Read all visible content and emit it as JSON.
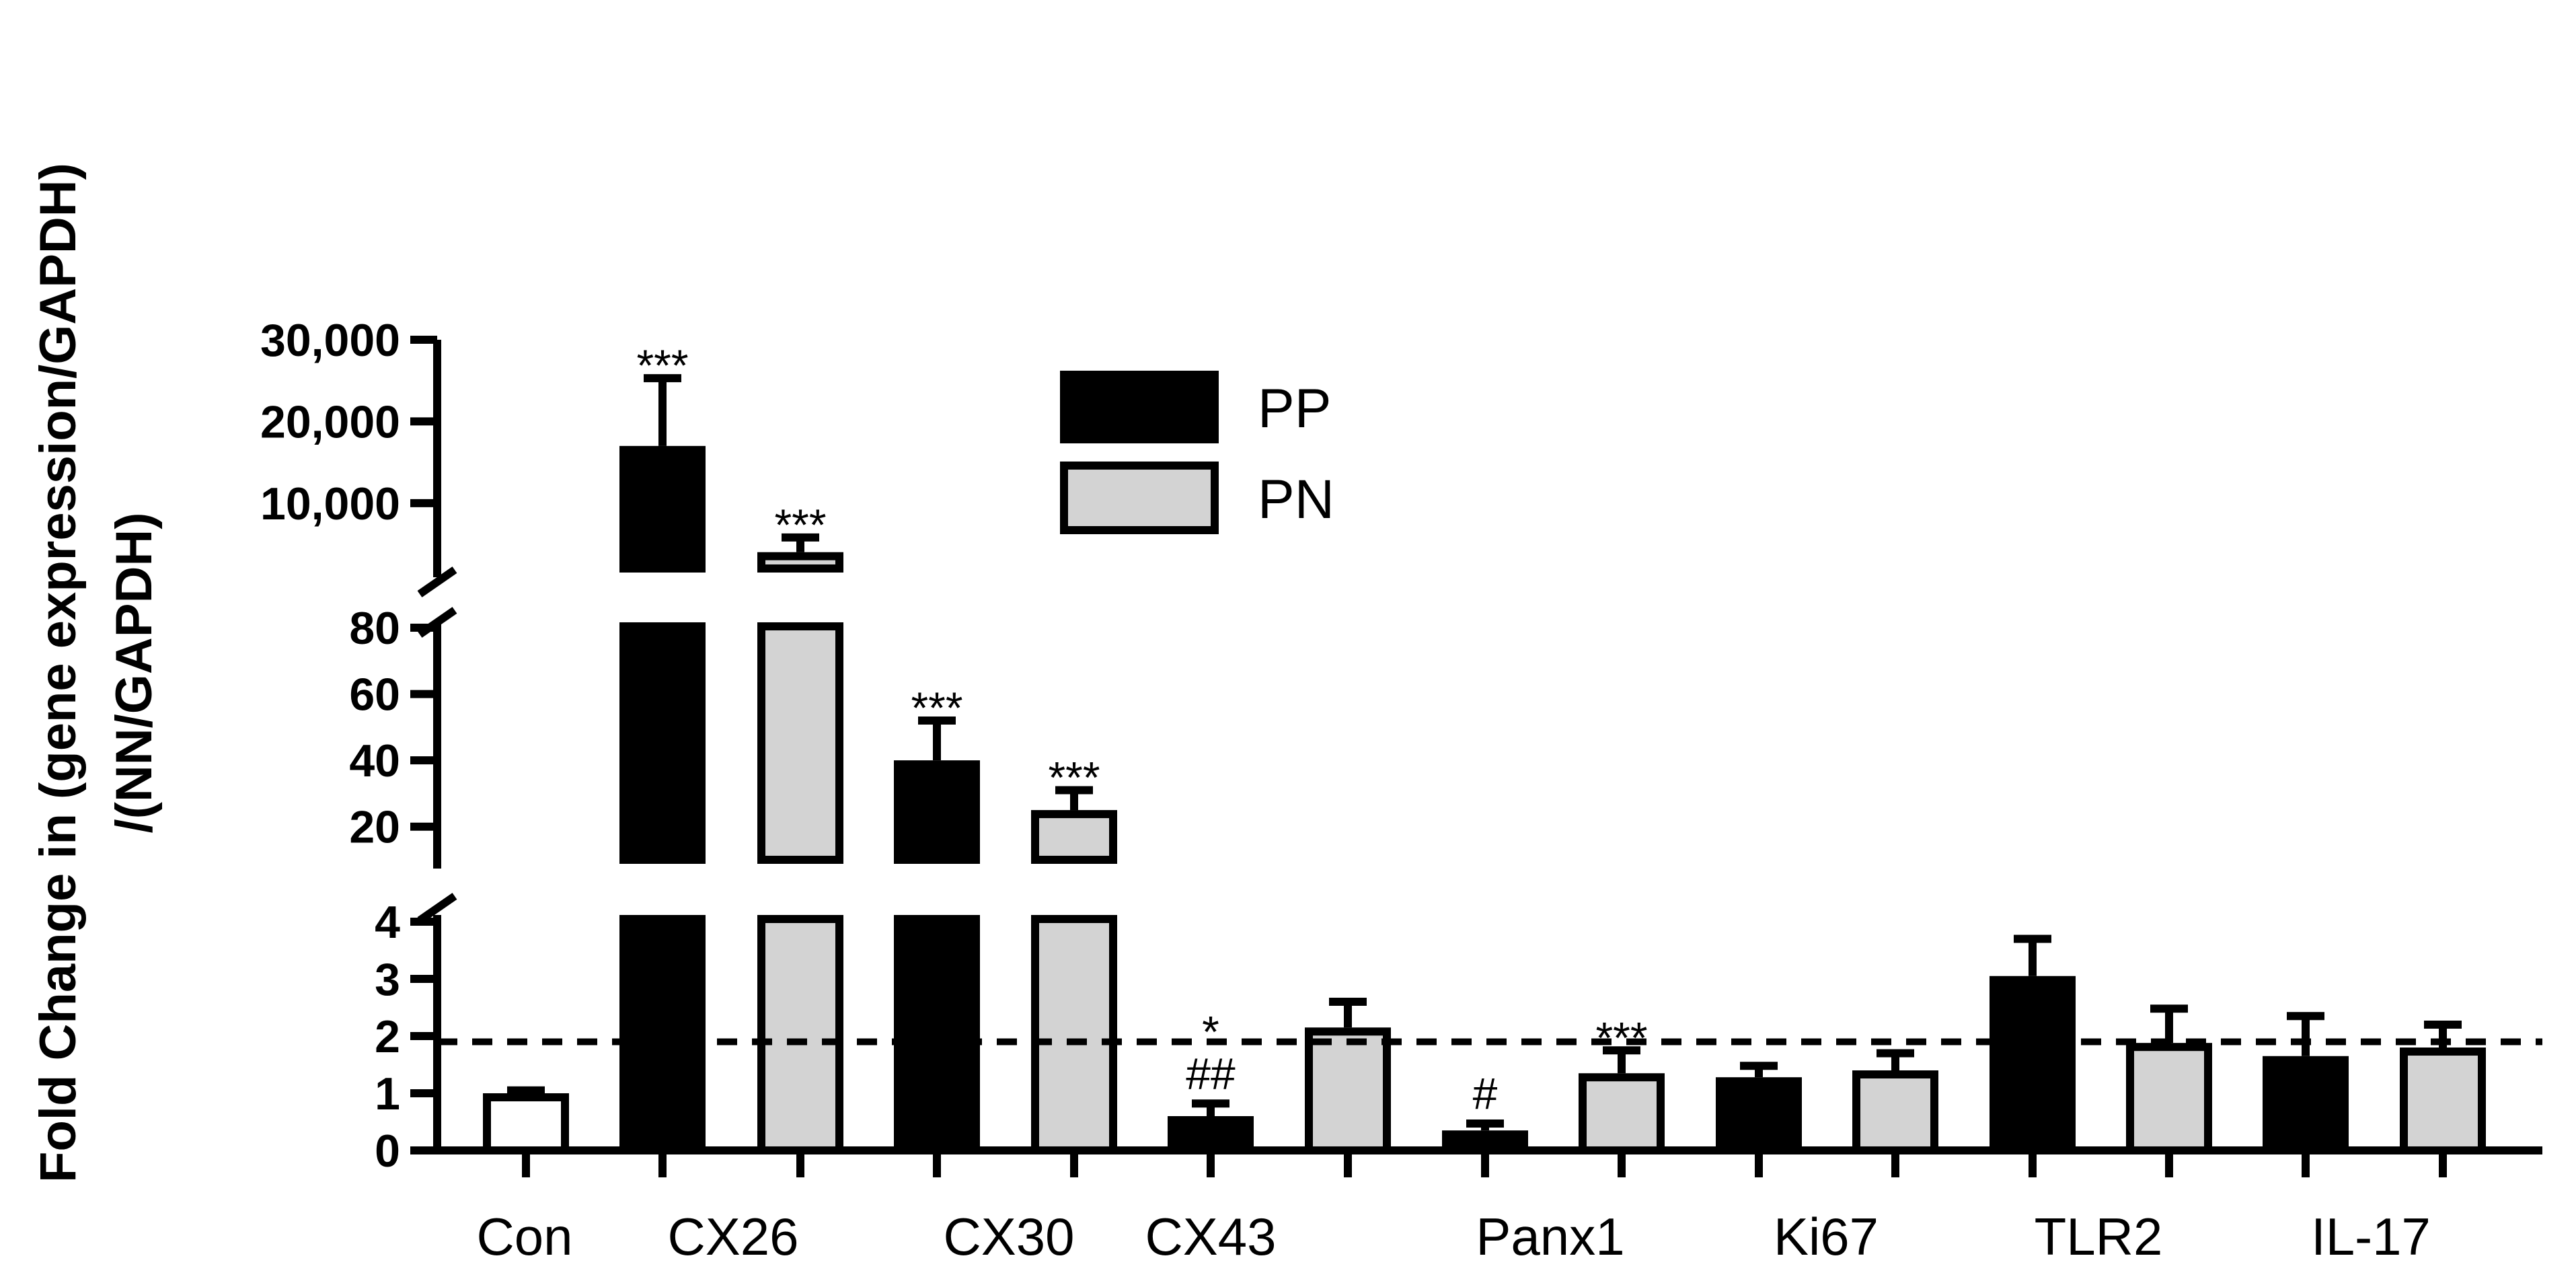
{
  "chart_data": {
    "type": "bar",
    "ylabel_line1": "Fold Change in (gene expression/GAPDH)",
    "ylabel_line2": "/(NN/GAPDH)",
    "y_axis_break_segments": [
      {
        "range": [
          0,
          4
        ],
        "ticks": [
          0,
          1,
          2,
          3,
          4
        ],
        "tick_labels": [
          "0",
          "1",
          "2",
          "3",
          "4"
        ]
      },
      {
        "range": [
          10,
          85
        ],
        "ticks": [
          20,
          40,
          60,
          80
        ],
        "tick_labels": [
          "20",
          "40",
          "60",
          "80"
        ]
      },
      {
        "range": [
          2000,
          30000
        ],
        "ticks": [
          10000,
          20000,
          30000
        ],
        "tick_labels": [
          "10,000",
          "20,000",
          "30,000"
        ]
      }
    ],
    "reference_line": {
      "y": 1.9,
      "style": "dashed"
    },
    "categories": [
      "Con",
      "CX26",
      "CX30",
      "CX43",
      "Panx1",
      "Ki67",
      "TLR2",
      "IL-17"
    ],
    "legend": [
      {
        "name": "PP",
        "color": "#000000"
      },
      {
        "name": "PN",
        "color": "#d3d3d3"
      }
    ],
    "bars": [
      {
        "category": "Con",
        "series": "Con",
        "value": 1.0,
        "error": 0.05,
        "fill": "#ffffff",
        "annot": []
      },
      {
        "category": "CX26",
        "series": "PP",
        "value": 17000,
        "error": 8300,
        "fill": "#000000",
        "annot": [
          "***"
        ]
      },
      {
        "category": "CX26",
        "series": "PN",
        "value": 4000,
        "error": 1800,
        "fill": "#d3d3d3",
        "annot": [
          "***"
        ]
      },
      {
        "category": "CX30",
        "series": "PP",
        "value": 40,
        "error": 12,
        "fill": "#000000",
        "annot": [
          "***"
        ]
      },
      {
        "category": "CX30",
        "series": "PN",
        "value": 25,
        "error": 6,
        "fill": "#d3d3d3",
        "annot": [
          "***"
        ]
      },
      {
        "category": "CX43",
        "series": "PP",
        "value": 0.6,
        "error": 0.22,
        "fill": "#000000",
        "annot": [
          "##",
          "*"
        ]
      },
      {
        "category": "CX43",
        "series": "PN",
        "value": 2.15,
        "error": 0.45,
        "fill": "#d3d3d3",
        "annot": []
      },
      {
        "category": "Panx1",
        "series": "PP",
        "value": 0.35,
        "error": 0.12,
        "fill": "#000000",
        "annot": [
          "#"
        ]
      },
      {
        "category": "Panx1",
        "series": "PN",
        "value": 1.35,
        "error": 0.4,
        "fill": "#d3d3d3",
        "annot": [
          "***"
        ]
      },
      {
        "category": "Ki67",
        "series": "PP",
        "value": 1.28,
        "error": 0.2,
        "fill": "#000000",
        "annot": []
      },
      {
        "category": "Ki67",
        "series": "PN",
        "value": 1.4,
        "error": 0.3,
        "fill": "#d3d3d3",
        "annot": []
      },
      {
        "category": "TLR2",
        "series": "PP",
        "value": 3.05,
        "error": 0.65,
        "fill": "#000000",
        "annot": []
      },
      {
        "category": "TLR2",
        "series": "PN",
        "value": 1.88,
        "error": 0.6,
        "fill": "#d3d3d3",
        "annot": []
      },
      {
        "category": "IL-17",
        "series": "PP",
        "value": 1.65,
        "error": 0.7,
        "fill": "#000000",
        "annot": []
      },
      {
        "category": "IL-17",
        "series": "PN",
        "value": 1.8,
        "error": 0.4,
        "fill": "#d3d3d3",
        "annot": []
      }
    ]
  }
}
